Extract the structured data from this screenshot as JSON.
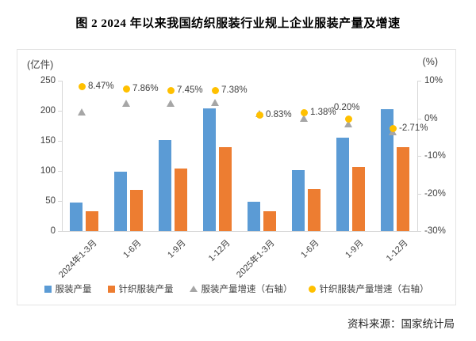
{
  "title": "图 2  2024 年以来我国纺织服装行业规上企业服装产量及增速",
  "source_note": "资料来源：国家统计局",
  "chart_data": {
    "type": "bar",
    "subtype": "combo-bar-scatter",
    "categories": [
      "2024年1-3月",
      "1-6月",
      "1-9月",
      "1-12月",
      "2025年1-3月",
      "1-6月",
      "1-9月",
      "1-12月"
    ],
    "left_axis": {
      "unit": "(亿件)",
      "min": 0,
      "max": 250,
      "tick_step": 50,
      "tick_labels": [
        "0",
        "50",
        "100",
        "150",
        "200",
        "250"
      ]
    },
    "right_axis": {
      "unit": "(%)",
      "min": -30,
      "max": 10,
      "tick_step": 10,
      "tick_labels": [
        "10%",
        "0%",
        "-10%",
        "-20%",
        "-30%"
      ]
    },
    "grid": "off",
    "legend_position": "bottom-center",
    "series": [
      {
        "name": "服装产量",
        "type": "bar",
        "axis": "left",
        "color": "#5b9bd5",
        "values": [
          48,
          99,
          151,
          204,
          49,
          101,
          155,
          203
        ]
      },
      {
        "name": "针织服装产量",
        "type": "bar",
        "axis": "left",
        "color": "#ed7d31",
        "values": [
          33,
          68,
          104,
          140,
          33,
          70,
          107,
          140
        ]
      },
      {
        "name": "服装产量增速（右轴）",
        "type": "scatter",
        "marker": "triangle",
        "axis": "right",
        "color": "#a6a6a6",
        "values": [
          1.6,
          4.0,
          4.0,
          4.1,
          1.1,
          -0.2,
          -1.5,
          -3.6
        ],
        "data_labels": null
      },
      {
        "name": "针织服装产量增速（右轴）",
        "type": "scatter",
        "marker": "circle",
        "axis": "right",
        "color": "#ffc000",
        "values": [
          8.47,
          7.86,
          7.45,
          7.38,
          0.83,
          1.38,
          -0.2,
          -2.71
        ],
        "data_labels": [
          "8.47%",
          "7.86%",
          "7.45%",
          "7.38%",
          "0.83%",
          "1.38%",
          "-0.20%",
          "-2.71%"
        ],
        "data_label_positions": [
          "right",
          "right",
          "right",
          "right",
          "right",
          "right",
          "above",
          "right"
        ]
      }
    ],
    "legend": [
      {
        "label": "服装产量",
        "marker": "square",
        "color": "#5b9bd5"
      },
      {
        "label": "针织服装产量",
        "marker": "square",
        "color": "#ed7d31"
      },
      {
        "label": "服装产量增速（右轴）",
        "marker": "triangle",
        "color": "#a6a6a6"
      },
      {
        "label": "针织服装产量增速（右轴）",
        "marker": "circle",
        "color": "#ffc000"
      }
    ]
  }
}
